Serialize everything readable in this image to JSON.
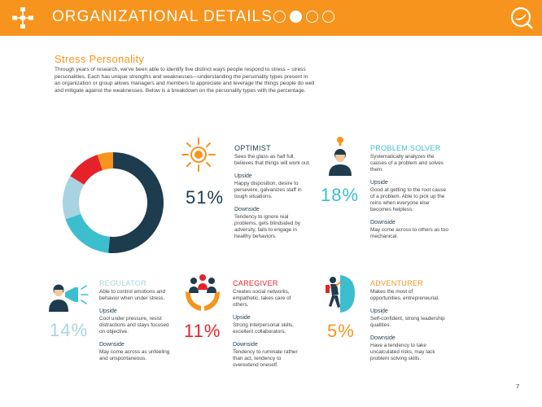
{
  "header": {
    "title": "ORGANIZATIONAL DETAILS",
    "dots": [
      false,
      true,
      false,
      false
    ],
    "bg_color": "#f7941d",
    "left_icon": "org-chart-icon",
    "logo_icon": "q-logo-icon"
  },
  "section": {
    "title": "Stress Personality",
    "intro": "Through years of research, we've been able to identify five distinct ways people respond to stress – stress personalities. Each has unique strengths and weaknesses—understanding the personality types present in an organization or group allows managers and members to appreciate and leverage the things people do well and mitigate against the weaknesses. Below is a breakdown on the personality types with the percentage."
  },
  "chart_data": {
    "type": "pie",
    "variant": "donut",
    "categories": [
      "Optimist",
      "Problem Solver",
      "Regulator",
      "Caregiver",
      "Adventurer"
    ],
    "values": [
      51,
      18,
      14,
      11,
      5
    ],
    "colors": [
      "#1d3c4e",
      "#3dbecf",
      "#a8d3e1",
      "#e5222c",
      "#f7941d"
    ]
  },
  "personalities": {
    "optimist": {
      "title": "OPTIMIST",
      "percent": "51%",
      "description": "Sees the glass as half full, believes that things will work out.",
      "upside_label": "Upside",
      "upside": "Happy disposition, desire to persevere, galvanizes staff in tough situations.",
      "downside_label": "Downside",
      "downside": "Tendency to ignore real problems, gets blindsided by adversity, fails to engage in healthy behaviors."
    },
    "problem_solver": {
      "title": "PROBLEM SOLVER",
      "percent": "18%",
      "description": "Systematically analyzes the causes of a problem and solves them.",
      "upside_label": "Upside",
      "upside": "Good at getting to the root cause of a problem. Able to pick up the reins when everyone else becomes helpless.",
      "downside_label": "Downside",
      "downside": "May come across to others as too mechanical."
    },
    "regulator": {
      "title": "REGULATOR",
      "percent": "14%",
      "description": "Able to control emotions and behavior when under stress.",
      "upside_label": "Upside",
      "upside": "Cool under pressure, resist distractions and stays focused on objective.",
      "downside_label": "Downside",
      "downside": "May come across as unfeeling and unspontaneous."
    },
    "caregiver": {
      "title": "CAREGIVER",
      "percent": "11%",
      "description": "Creates social networks, empathetic, takes care of others.",
      "upside_label": "Upside",
      "upside": "Strong interpersonal skills, excellent collaborators.",
      "downside_label": "Downside",
      "downside": "Tendency to ruminate rather than act, tendency to overextend oneself."
    },
    "adventurer": {
      "title": "ADVENTURER",
      "percent": "5%",
      "description": "Makes the most of opportunities, entrepreneurial.",
      "upside_label": "Upside",
      "upside": "Self-confident, strong leadership qualities.",
      "downside_label": "Downside",
      "downside": "Have a tendency to take uncalculated risks, may lack problem solving skills."
    }
  },
  "page_number": "7"
}
